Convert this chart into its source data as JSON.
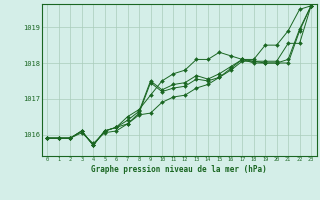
{
  "bg_color": "#d4eee8",
  "grid_color": "#aaccbb",
  "line_color": "#1a6622",
  "marker_color": "#1a6622",
  "xlabel": "Graphe pression niveau de la mer (hPa)",
  "xlabel_fontsize": 5.5,
  "ylabel_values": [
    1016,
    1017,
    1018,
    1019
  ],
  "xlim": [
    -0.5,
    23.5
  ],
  "ylim": [
    1015.4,
    1019.65
  ],
  "xticks": [
    0,
    1,
    2,
    3,
    4,
    5,
    6,
    7,
    8,
    9,
    10,
    11,
    12,
    13,
    14,
    15,
    16,
    17,
    18,
    19,
    20,
    21,
    22,
    23
  ],
  "series": [
    [
      1015.9,
      1015.9,
      1015.9,
      1016.1,
      1015.7,
      1016.1,
      1016.2,
      1016.5,
      1016.7,
      1017.1,
      1017.5,
      1017.7,
      1017.8,
      1018.1,
      1018.1,
      1018.3,
      1018.2,
      1018.1,
      1018.1,
      1018.5,
      1018.5,
      1018.9,
      1019.5,
      1019.6
    ],
    [
      1015.9,
      1015.9,
      1015.9,
      1016.1,
      1015.7,
      1016.1,
      1016.2,
      1016.3,
      1016.6,
      1017.45,
      1017.2,
      1017.3,
      1017.35,
      1017.55,
      1017.5,
      1017.6,
      1017.85,
      1018.1,
      1018.0,
      1018.0,
      1018.0,
      1018.0,
      1018.9,
      1019.6
    ],
    [
      1015.9,
      1015.9,
      1015.9,
      1016.05,
      1015.75,
      1016.05,
      1016.1,
      1016.3,
      1016.55,
      1016.6,
      1016.9,
      1017.05,
      1017.1,
      1017.3,
      1017.4,
      1017.6,
      1017.8,
      1018.05,
      1018.05,
      1018.05,
      1018.05,
      1018.55,
      1018.55,
      1019.6
    ],
    [
      1015.9,
      1015.9,
      1015.9,
      1016.1,
      1015.7,
      1016.1,
      1016.2,
      1016.4,
      1016.65,
      1017.5,
      1017.25,
      1017.4,
      1017.45,
      1017.65,
      1017.55,
      1017.7,
      1017.9,
      1018.1,
      1018.05,
      1018.0,
      1018.0,
      1018.1,
      1018.95,
      1019.6
    ]
  ]
}
